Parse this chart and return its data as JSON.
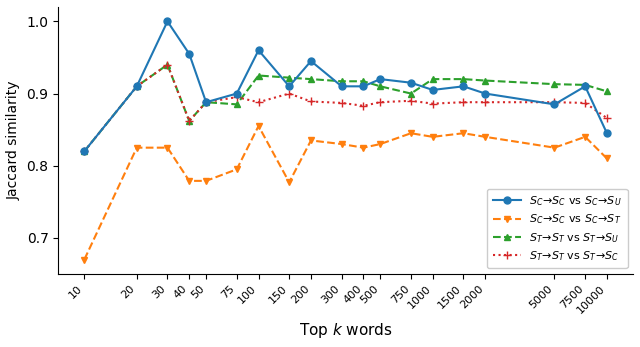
{
  "x_labels": [
    10,
    20,
    30,
    40,
    50,
    75,
    100,
    150,
    200,
    300,
    400,
    500,
    750,
    1000,
    1500,
    2000,
    5000,
    7500,
    10000
  ],
  "line1": {
    "label": "$S_C\\!\\to\\!S_C$ vs $S_C\\!\\to\\!S_U$",
    "color": "#1f77b4",
    "linestyle": "-",
    "marker": "o",
    "values": [
      0.82,
      0.91,
      1.0,
      0.955,
      0.888,
      0.9,
      0.96,
      0.91,
      0.945,
      0.91,
      0.91,
      0.92,
      0.915,
      0.905,
      0.91,
      0.9,
      0.885,
      0.91,
      0.845
    ]
  },
  "line2": {
    "label": "$S_C\\!\\to\\!S_C$ vs $S_C\\!\\to\\!S_T$",
    "color": "#ff7f0e",
    "linestyle": "--",
    "marker": "v",
    "values": [
      0.67,
      0.825,
      0.825,
      0.779,
      0.779,
      0.795,
      0.855,
      0.777,
      0.835,
      0.83,
      0.825,
      0.83,
      0.845,
      0.84,
      0.845,
      0.84,
      0.825,
      0.84,
      0.81
    ]
  },
  "line3": {
    "label": "$S_T\\!\\to\\!S_T$ vs $S_T\\!\\to\\!S_U$",
    "color": "#2ca02c",
    "linestyle": "--",
    "marker": "^",
    "values": [
      0.82,
      0.91,
      0.94,
      0.862,
      0.888,
      0.885,
      0.925,
      0.922,
      0.92,
      0.917,
      0.917,
      0.91,
      0.9,
      0.92,
      0.92,
      0.918,
      0.913,
      0.912,
      0.903
    ]
  },
  "line4": {
    "label": "$S_T\\!\\to\\!S_T$ vs $S_T\\!\\to\\!S_C$",
    "color": "#d62728",
    "linestyle": ":",
    "marker": "P",
    "values": [
      0.82,
      0.91,
      0.94,
      0.862,
      0.888,
      0.895,
      0.888,
      0.9,
      0.889,
      0.887,
      0.883,
      0.888,
      0.89,
      0.886,
      0.888,
      0.888,
      0.888,
      0.887,
      0.866
    ]
  },
  "xlabel": "Top $k$ words",
  "ylabel": "Jaccard similarity",
  "ylim": [
    0.65,
    1.02
  ],
  "yticks": [
    0.7,
    0.8,
    0.9,
    1.0
  ]
}
